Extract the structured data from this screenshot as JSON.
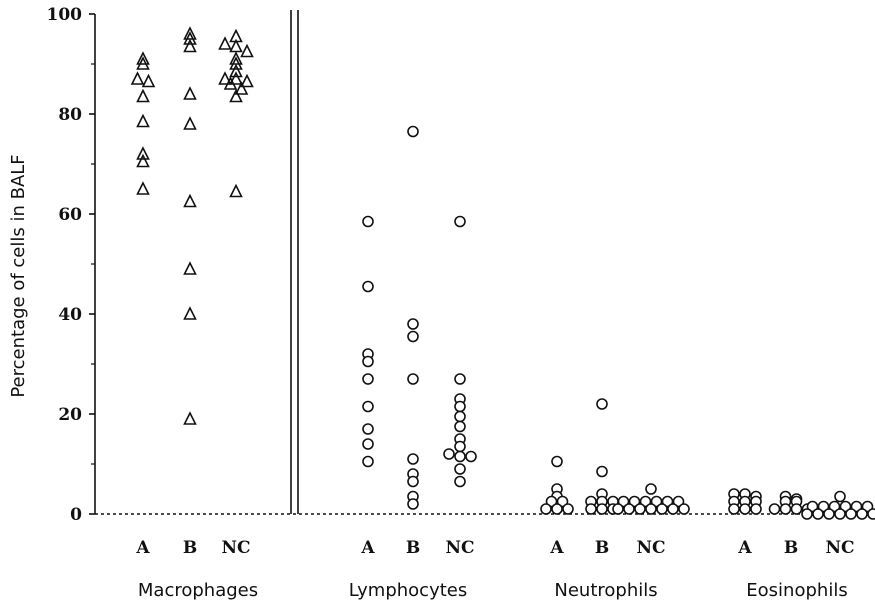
{
  "chart_data": {
    "type": "scatter",
    "title": "",
    "xlabel": "",
    "ylabel": "Percentage of cells in BALF",
    "ylim": [
      0,
      100
    ],
    "yticks": [
      "0",
      "20",
      "40",
      "60",
      "80",
      "100"
    ],
    "grid": false,
    "markers": {
      "Macrophages": "triangle",
      "Lymphocytes": "circle",
      "Neutrophils": "circle",
      "Eosinophils": "circle"
    },
    "categories": [
      {
        "name": "Macrophages",
        "groups": [
          {
            "label": "A",
            "values": [
              91,
              90,
              87,
              86.5,
              83.5,
              78.5,
              72,
              70.5,
              65
            ]
          },
          {
            "label": "B",
            "values": [
              96,
              95,
              93.5,
              84,
              78,
              62.5,
              49,
              40,
              19
            ]
          },
          {
            "label": "NC",
            "values": [
              95.5,
              94,
              93.5,
              92.5,
              91,
              90,
              88.5,
              87,
              87,
              86.5,
              86,
              85,
              83.5,
              64.5
            ]
          }
        ]
      },
      {
        "name": "Lymphocytes",
        "groups": [
          {
            "label": "A",
            "values": [
              58.5,
              45.5,
              32,
              30.5,
              27,
              21.5,
              17,
              14,
              10.5
            ]
          },
          {
            "label": "B",
            "values": [
              76.5,
              38,
              35.5,
              27,
              11,
              8,
              6.5,
              3.5,
              2
            ]
          },
          {
            "label": "NC",
            "values": [
              58.5,
              27,
              23,
              21.5,
              19.5,
              17.5,
              15,
              13.5,
              12,
              11.5,
              11.5,
              9,
              6.5
            ]
          }
        ]
      },
      {
        "name": "Neutrophils",
        "groups": [
          {
            "label": "A",
            "values": [
              10.5,
              5,
              3.5,
              2.5,
              2.5,
              1,
              1,
              1
            ]
          },
          {
            "label": "B",
            "values": [
              22,
              8.5,
              4,
              2.5,
              2.5,
              2.5,
              1,
              1,
              1
            ]
          },
          {
            "label": "NC",
            "values": [
              5,
              2.5,
              2.5,
              2.5,
              2.5,
              2.5,
              2.5,
              1,
              1,
              1,
              1,
              1,
              1,
              1
            ]
          }
        ]
      },
      {
        "name": "Eosinophils",
        "groups": [
          {
            "label": "A",
            "values": [
              4,
              4,
              3.5,
              2.5,
              2.5,
              2.5,
              1,
              1,
              1
            ]
          },
          {
            "label": "B",
            "values": [
              3.5,
              3,
              2.5,
              2.5,
              1,
              1,
              1,
              1
            ]
          },
          {
            "label": "NC",
            "values": [
              3.5,
              1.5,
              1.5,
              1.5,
              1.5,
              1.5,
              1.5,
              0,
              0,
              0,
              0,
              0,
              0,
              0
            ]
          }
        ]
      }
    ]
  }
}
